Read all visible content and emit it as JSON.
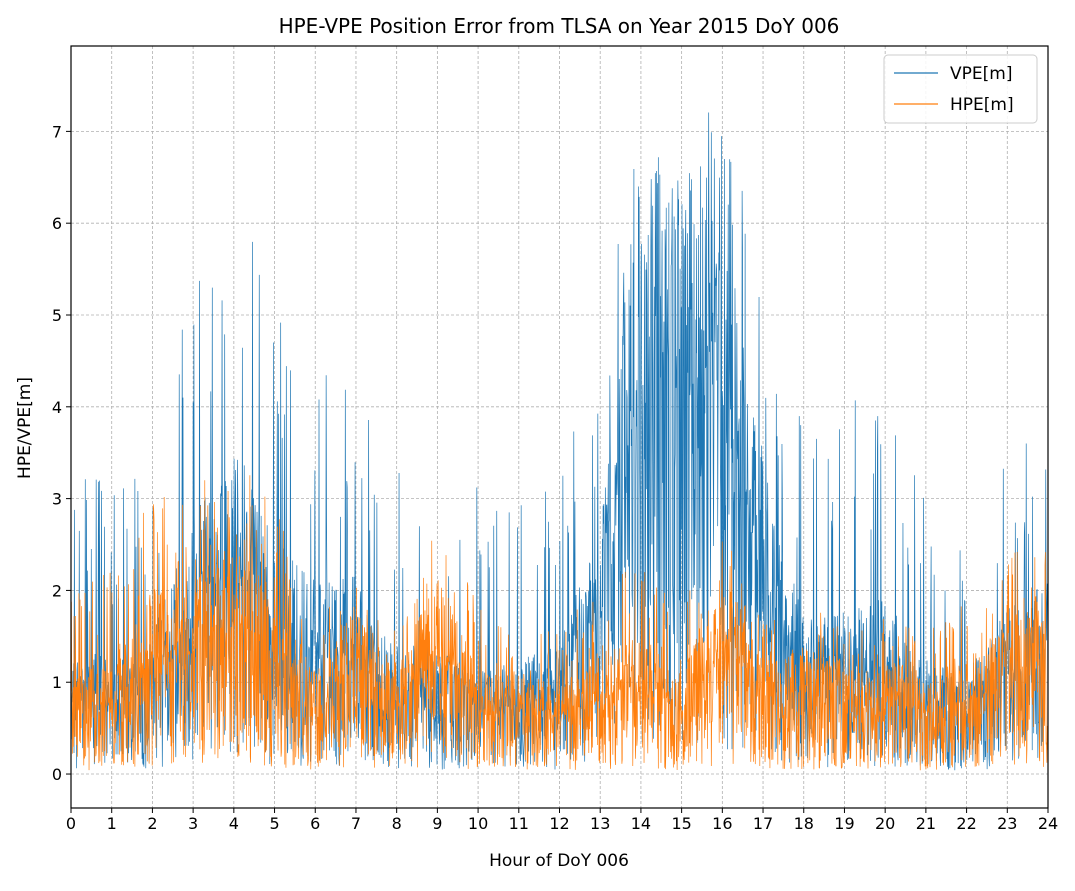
{
  "chart_data": {
    "type": "line",
    "title": "HPE-VPE Position Error from TLSA on Year 2015 DoY 006",
    "xlabel": "Hour of DoY 006",
    "ylabel": "HPE/VPE[m]",
    "xlim": [
      0,
      24
    ],
    "ylim": [
      -0.37,
      7.93
    ],
    "xticks": [
      "0",
      "1",
      "2",
      "3",
      "4",
      "5",
      "6",
      "7",
      "8",
      "9",
      "10",
      "11",
      "12",
      "13",
      "14",
      "15",
      "16",
      "17",
      "18",
      "19",
      "20",
      "21",
      "22",
      "23",
      "24"
    ],
    "yticks": [
      "0",
      "1",
      "2",
      "3",
      "4",
      "5",
      "6",
      "7"
    ],
    "grid": true,
    "legend": "top-right",
    "series": [
      {
        "name": "VPE[m]",
        "color": "#1f77b4",
        "summary_hour": [
          0,
          1,
          2,
          3,
          4,
          5,
          6,
          7,
          8,
          9,
          10,
          11,
          12,
          13,
          14,
          15,
          16,
          17,
          18,
          19,
          20,
          21,
          22,
          23,
          24
        ],
        "summary_mean": [
          1.0,
          0.9,
          1.1,
          2.0,
          2.6,
          1.9,
          1.5,
          1.6,
          1.0,
          1.0,
          0.8,
          0.9,
          1.0,
          2.0,
          4.9,
          4.8,
          4.9,
          2.5,
          1.2,
          1.3,
          1.4,
          0.9,
          0.8,
          1.3,
          1.5
        ],
        "summary_peak": [
          4.3,
          3.2,
          3.7,
          5.5,
          6.2,
          5.4,
          4.4,
          4.5,
          3.4,
          3.9,
          3.4,
          3.3,
          3.1,
          4.9,
          7.2,
          6.6,
          7.6,
          5.1,
          4.1,
          4.1,
          4.0,
          3.1,
          3.0,
          4.2,
          3.6
        ]
      },
      {
        "name": "HPE[m]",
        "color": "#ff7f0e",
        "summary_hour": [
          0,
          1,
          2,
          3,
          4,
          5,
          6,
          7,
          8,
          9,
          10,
          11,
          12,
          13,
          14,
          15,
          16,
          17,
          18,
          19,
          20,
          21,
          22,
          23,
          24
        ],
        "summary_mean": [
          0.8,
          0.9,
          1.5,
          1.5,
          1.9,
          1.4,
          0.8,
          1.4,
          0.8,
          1.6,
          0.8,
          0.8,
          0.7,
          1.0,
          1.1,
          0.8,
          1.6,
          0.9,
          1.0,
          0.8,
          0.9,
          0.8,
          0.9,
          1.2,
          1.4
        ],
        "summary_peak": [
          2.0,
          2.3,
          3.0,
          3.1,
          3.5,
          2.9,
          1.9,
          2.3,
          1.8,
          2.8,
          1.9,
          1.6,
          1.6,
          2.1,
          2.3,
          1.8,
          2.8,
          1.7,
          1.9,
          1.6,
          1.8,
          1.6,
          1.9,
          2.4,
          2.5
        ]
      }
    ]
  }
}
